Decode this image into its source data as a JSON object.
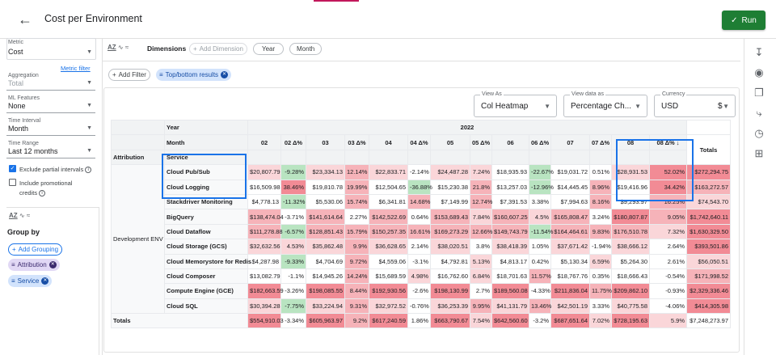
{
  "header": {
    "title": "Cost per Environment",
    "run_label": "Run"
  },
  "left": {
    "metric": {
      "label": "Metric",
      "value": "Cost",
      "filter_link": "Metric filter"
    },
    "aggregation": {
      "label": "Aggregation",
      "value": "Total"
    },
    "ml_features": {
      "label": "ML Features",
      "value": "None"
    },
    "time_interval": {
      "label": "Time Interval",
      "value": "Month"
    },
    "time_range": {
      "label": "Time Range",
      "value": "Last 12 months"
    },
    "exclude_partial": {
      "label": "Exclude partial intervals",
      "checked": true
    },
    "include_promo": {
      "label_1": "Include promotional",
      "label_2": "credits",
      "checked": false
    },
    "group_by": "Group by",
    "add_grouping": "Add Grouping",
    "groupings": [
      "Attribution",
      "Service"
    ]
  },
  "dimbar": {
    "label": "Dimensions",
    "add_dimension": "Add Dimension",
    "chips": [
      "Year",
      "Month"
    ]
  },
  "filterbar": {
    "add_filter": "Add Filter",
    "active_filter": "Top/bottom results"
  },
  "controls": {
    "view_as": {
      "label": "View As",
      "value": "Col Heatmap"
    },
    "view_data_as": {
      "label": "View data as",
      "value": "Percentage Ch..."
    },
    "currency": {
      "label": "Currency",
      "value": "USD",
      "symbol": "$"
    }
  },
  "colors": {
    "accent": "#1a73e8",
    "run": "#1e7e34",
    "red_strong": "#f28b95",
    "red_mid": "#f6b3b9",
    "red_light": "#fad6d9",
    "green": "#b9e4c1",
    "highlight_box": "#1a73e8"
  },
  "table": {
    "year_label": "Year",
    "month_label": "Month",
    "year": "2022",
    "attribution_header": "Attribution",
    "service_header": "Service",
    "totals_header": "Totals",
    "columns": [
      "02",
      "02 Δ%",
      "03",
      "03 Δ%",
      "04",
      "04 Δ%",
      "05",
      "05 Δ%",
      "06",
      "06 Δ%",
      "07",
      "07 Δ%",
      "08",
      "08 Δ% ↓"
    ],
    "group": "Development ENV",
    "rows": [
      {
        "service": "Cloud Pub/Sub",
        "cells": [
          "$20,807.79",
          "-9.28%",
          "$23,334.13",
          "12.14%",
          "$22,833.71",
          "-2.14%",
          "$24,487.28",
          "7.24%",
          "$18,935.93",
          "-22.67%",
          "$19,031.72",
          "0.51%",
          "$28,931.53",
          "52.02%"
        ],
        "total": "$272,294.75"
      },
      {
        "service": "Cloud Logging",
        "cells": [
          "$16,509.98",
          "38.46%",
          "$19,810.78",
          "19.99%",
          "$12,504.65",
          "-36.88%",
          "$15,230.38",
          "21.8%",
          "$13,257.03",
          "-12.96%",
          "$14,445.45",
          "8.96%",
          "$19,416.96",
          "34.42%"
        ],
        "total": "$163,272.57"
      },
      {
        "service": "Stackdriver Monitoring",
        "cells": [
          "$4,778.13",
          "-11.32%",
          "$5,530.06",
          "15.74%",
          "$6,341.81",
          "14.68%",
          "$7,149.99",
          "12.74%",
          "$7,391.53",
          "3.38%",
          "$7,994.63",
          "8.16%",
          "$9,293.97",
          "16.25%"
        ],
        "total": "$74,543.70"
      },
      {
        "service": "BigQuery",
        "cells": [
          "$138,474.04",
          "-3.71%",
          "$141,614.64",
          "2.27%",
          "$142,522.69",
          "0.64%",
          "$153,689.43",
          "7.84%",
          "$160,607.25",
          "4.5%",
          "$165,808.47",
          "3.24%",
          "$180,807.87",
          "9.05%"
        ],
        "total": "$1,742,640.11"
      },
      {
        "service": "Cloud Dataflow",
        "cells": [
          "$111,278.88",
          "-6.57%",
          "$128,851.43",
          "15.79%",
          "$150,257.35",
          "16.61%",
          "$169,273.29",
          "12.66%",
          "$149,743.79",
          "-11.54%",
          "$164,464.61",
          "9.83%",
          "$176,510.78",
          "7.32%"
        ],
        "total": "$1,630,329.50"
      },
      {
        "service": "Cloud Storage (GCS)",
        "cells": [
          "$32,632.56",
          "4.53%",
          "$35,862.48",
          "9.9%",
          "$36,628.65",
          "2.14%",
          "$38,020.51",
          "3.8%",
          "$38,418.39",
          "1.05%",
          "$37,671.42",
          "-1.94%",
          "$38,666.12",
          "2.64%"
        ],
        "total": "$393,501.86"
      },
      {
        "service": "Cloud Memorystore for Redis",
        "cells": [
          "$4,287.98",
          "-9.33%",
          "$4,704.69",
          "9.72%",
          "$4,559.06",
          "-3.1%",
          "$4,792.81",
          "5.13%",
          "$4,813.17",
          "0.42%",
          "$5,130.34",
          "6.59%",
          "$5,264.30",
          "2.61%"
        ],
        "total": "$56,050.51"
      },
      {
        "service": "Cloud Composer",
        "cells": [
          "$13,082.79",
          "-1.1%",
          "$14,945.26",
          "14.24%",
          "$15,689.59",
          "4.98%",
          "$16,762.60",
          "6.84%",
          "$18,701.63",
          "11.57%",
          "$18,767.76",
          "0.35%",
          "$18,666.43",
          "-0.54%"
        ],
        "total": "$171,998.52"
      },
      {
        "service": "Compute Engine (GCE)",
        "cells": [
          "$182,663.59",
          "-3.26%",
          "$198,085.55",
          "8.44%",
          "$192,930.56",
          "-2.6%",
          "$198,130.99",
          "2.7%",
          "$189,560.08",
          "-4.33%",
          "$211,836.04",
          "11.75%",
          "$209,862.10",
          "-0.93%"
        ],
        "total": "$2,329,336.46"
      },
      {
        "service": "Cloud SQL",
        "cells": [
          "$30,394.28",
          "-7.75%",
          "$33,224.94",
          "9.31%",
          "$32,972.52",
          "-0.76%",
          "$36,253.39",
          "9.95%",
          "$41,131.79",
          "13.46%",
          "$42,501.19",
          "3.33%",
          "$40,775.58",
          "-4.06%"
        ],
        "total": "$414,305.98"
      }
    ],
    "totals_row": {
      "label": "Totals",
      "cells": [
        "$554,910.03",
        "-3.34%",
        "$605,963.97",
        "9.2%",
        "$617,240.59",
        "1.86%",
        "$663,790.67",
        "7.54%",
        "$642,560.60",
        "-3.2%",
        "$687,651.64",
        "7.02%",
        "$728,195.63",
        "5.9%"
      ],
      "total": "$7,248,273.97"
    }
  }
}
